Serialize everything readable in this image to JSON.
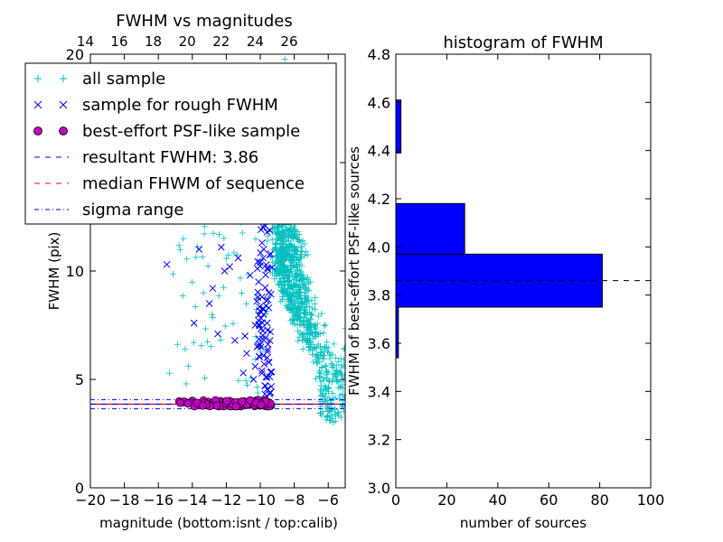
{
  "chart_data": [
    {
      "type": "scatter",
      "title": "FWHM vs magnitudes",
      "xlabel": "magnitude (bottom:isnt / top:calib)",
      "ylabel": "FWHM (pix)",
      "xlim": [
        -20,
        -5
      ],
      "ylim": [
        0,
        20
      ],
      "x_ticks": [
        -20,
        -18,
        -16,
        -14,
        -12,
        -10,
        -8,
        -6
      ],
      "x_tick_labels": [
        "−20",
        "−18",
        "−16",
        "−14",
        "−12",
        "−10",
        "−8",
        "−6"
      ],
      "y_ticks": [
        0,
        5,
        10,
        15,
        20
      ],
      "y_tick_labels": [
        "0",
        "5",
        "10",
        "15",
        "20"
      ],
      "top_x_ticks": [
        14,
        16,
        18,
        20,
        22,
        24,
        26
      ],
      "top_x_tick_labels": [
        "14",
        "16",
        "18",
        "20",
        "22",
        "24",
        "26"
      ],
      "top_axis_offset": 34.3,
      "colors": {
        "all_sample": "#00bfbf",
        "rough_sample": "#0000ff",
        "psf_sample": "#bf00bf",
        "resultant": "#0000ff",
        "median": "#ff0000",
        "sigma": "#0000ff"
      },
      "series": [
        {
          "name": "all sample",
          "marker": "plus",
          "color": "#00bfbf"
        },
        {
          "name": "sample for rough FWHM",
          "marker": "x",
          "color": "#0000ff"
        },
        {
          "name": "best-effort PSF-like sample",
          "marker": "circle",
          "color": "#bf00bf"
        }
      ],
      "lines": [
        {
          "name": "resultant FWHM: 3.86",
          "y": 3.86,
          "style": "dashed",
          "color": "#0000ff"
        },
        {
          "name": "median FHWM of sequence",
          "y": 3.86,
          "style": "dashed",
          "color": "#ff0000"
        },
        {
          "name": "sigma range",
          "y": [
            3.65,
            4.07
          ],
          "style": "dashdot",
          "color": "#0000ff"
        }
      ],
      "legend": {
        "placement": "upper-left",
        "entries": [
          {
            "label": "all sample",
            "marker": "plus",
            "color": "#00bfbf"
          },
          {
            "label": "sample for rough FWHM",
            "marker": "x",
            "color": "#0000ff"
          },
          {
            "label": "best-effort PSF-like sample",
            "marker": "circle",
            "color": "#bf00bf"
          },
          {
            "label": "resultant FWHM: 3.86",
            "marker": "dashed",
            "color": "#0000ff"
          },
          {
            "label": "median FHWM of sequence",
            "marker": "dashed",
            "color": "#ff0000"
          },
          {
            "label": "sigma range",
            "marker": "dashdot",
            "color": "#0000ff"
          }
        ]
      },
      "rough_points": [
        [
          -15.5,
          10.3
        ],
        [
          -13.6,
          11.0
        ],
        [
          -13.0,
          8.5
        ],
        [
          -12.3,
          11.1
        ],
        [
          -12.1,
          10.0
        ],
        [
          -11.8,
          10.2
        ],
        [
          -11.3,
          10.6
        ],
        [
          -13.9,
          7.6
        ],
        [
          -12.8,
          9.2
        ],
        [
          -12.5,
          7.1
        ],
        [
          -11.5,
          6.8
        ],
        [
          -11.0,
          5.3
        ],
        [
          -10.8,
          6.2
        ],
        [
          -10.4,
          5.0
        ],
        [
          -10.3,
          7.5
        ],
        [
          -10.2,
          8.6
        ],
        [
          -10.1,
          9.5
        ],
        [
          -10.0,
          10.4
        ],
        [
          -9.9,
          11.3
        ],
        [
          -9.8,
          12.0
        ],
        [
          -9.7,
          13.1
        ],
        [
          -9.6,
          14.0
        ],
        [
          -9.9,
          5.4
        ],
        [
          -9.8,
          6.1
        ],
        [
          -9.7,
          6.9
        ],
        [
          -9.6,
          7.6
        ],
        [
          -9.5,
          8.3
        ],
        [
          -9.5,
          9.0
        ],
        [
          -9.5,
          5.8
        ],
        [
          -9.4,
          4.4
        ],
        [
          -9.4,
          10.8
        ],
        [
          -9.6,
          11.8
        ],
        [
          -9.7,
          4.7
        ],
        [
          -9.8,
          8.0
        ],
        [
          -10.6,
          9.8
        ],
        [
          -10.9,
          7.0
        ],
        [
          -9.3,
          12.4
        ],
        [
          -9.4,
          13.6
        ],
        [
          -9.5,
          15.0
        ],
        [
          -9.6,
          5.1
        ],
        [
          -10.0,
          6.6
        ],
        [
          -10.3,
          5.6
        ],
        [
          -9.9,
          8.8
        ],
        [
          -9.4,
          7.2
        ]
      ],
      "psf_x_range": [
        -15.0,
        -9.3
      ],
      "psf_y_range": [
        3.75,
        4.05
      ],
      "histogram_counts": []
    },
    {
      "type": "bar",
      "orientation": "horizontal",
      "title": "histogram of FWHM",
      "xlabel": "number of sources",
      "ylabel": "FWHM of best-effort PSF-like sources",
      "xlim": [
        0,
        100
      ],
      "ylim": [
        3.0,
        4.8
      ],
      "x_ticks": [
        0,
        20,
        40,
        60,
        80,
        100
      ],
      "x_tick_labels": [
        "0",
        "20",
        "40",
        "60",
        "80",
        "100"
      ],
      "y_ticks": [
        3.0,
        3.2,
        3.4,
        3.6,
        3.8,
        4.0,
        4.2,
        4.4,
        4.6,
        4.8
      ],
      "y_tick_labels": [
        "3.0",
        "3.2",
        "3.4",
        "3.6",
        "3.8",
        "4.0",
        "4.2",
        "4.4",
        "4.6",
        "4.8"
      ],
      "bar_color": "#0000ff",
      "bins": [
        {
          "y0": 3.54,
          "y1": 3.75,
          "value": 1
        },
        {
          "y0": 3.75,
          "y1": 3.97,
          "value": 81
        },
        {
          "y0": 3.97,
          "y1": 4.18,
          "value": 27
        },
        {
          "y0": 4.39,
          "y1": 4.61,
          "value": 2
        }
      ],
      "reference_line": {
        "y": 3.86,
        "style": "dashed",
        "color": "#000000"
      }
    }
  ]
}
